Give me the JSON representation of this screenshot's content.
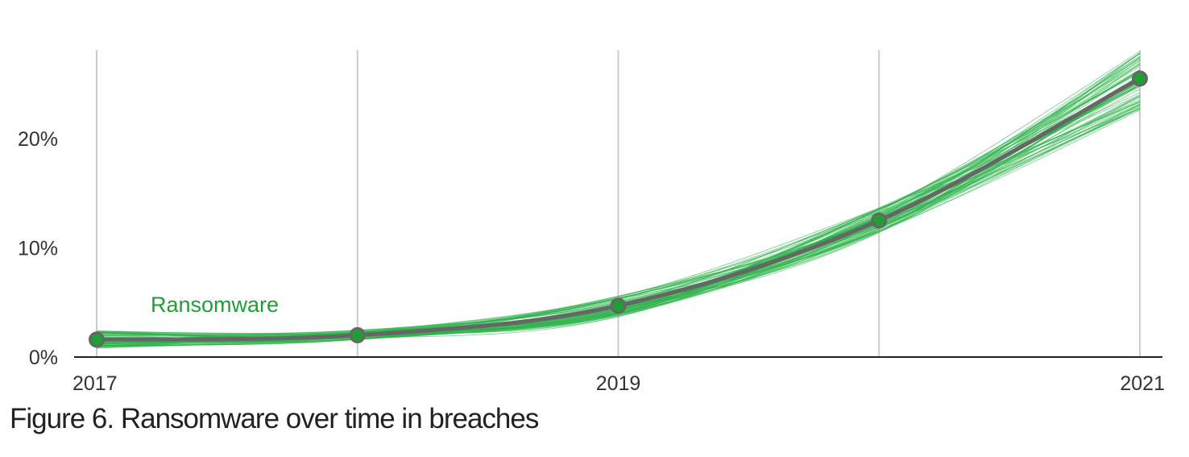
{
  "chart_data": {
    "type": "line",
    "title": "",
    "xlabel": "",
    "ylabel": "",
    "x": [
      2017,
      2018,
      2019,
      2020,
      2021
    ],
    "x_tick_labels": [
      "2017",
      "2019",
      "2021"
    ],
    "x_tick_values": [
      2017,
      2019,
      2021
    ],
    "y_tick_labels": [
      "0%",
      "10%",
      "20%"
    ],
    "y_tick_values": [
      0,
      10,
      20
    ],
    "xlim": [
      2017,
      2021
    ],
    "ylim": [
      0,
      28
    ],
    "grid": "vertical",
    "series": [
      {
        "name": "Ransomware",
        "values": [
          1.6,
          2.0,
          4.7,
          12.5,
          25.5
        ],
        "band_low": [
          0.8,
          1.6,
          3.7,
          11.4,
          22.6
        ],
        "band_high": [
          2.4,
          2.5,
          5.6,
          13.7,
          28.0
        ]
      }
    ],
    "colors": {
      "series_line": "#666666",
      "series_accent": "#1f9e35",
      "ensemble": "#2db34a",
      "gridline": "#cccccc",
      "axis": "#222222"
    }
  },
  "figure": {
    "caption": "Figure 6. Ransomware over time in breaches"
  }
}
